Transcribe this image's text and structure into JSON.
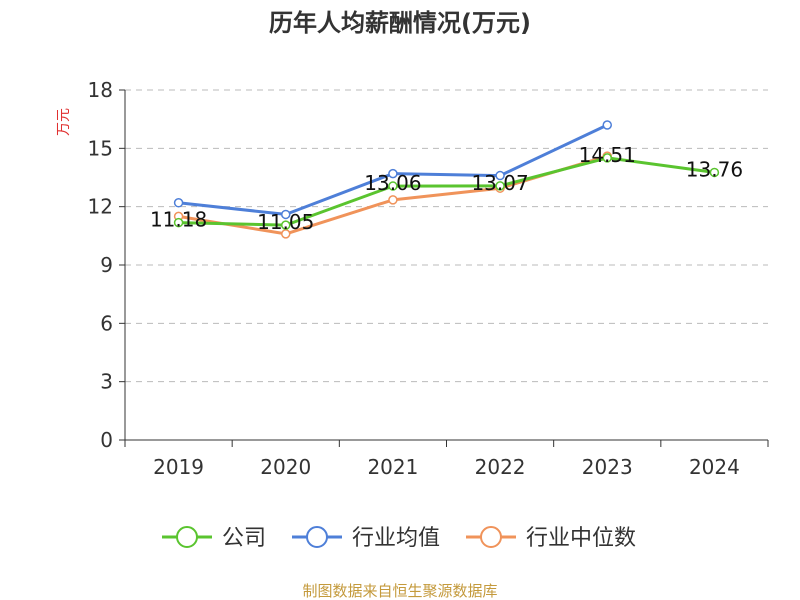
{
  "chart_data": {
    "type": "line",
    "title": "历年人均薪酬情况(万元)",
    "ylabel": "万元",
    "categories": [
      "2019",
      "2020",
      "2021",
      "2022",
      "2023",
      "2024"
    ],
    "ylim": [
      0,
      18
    ],
    "yticks": [
      "0",
      "3",
      "6",
      "9",
      "12",
      "15",
      "18"
    ],
    "grid": true,
    "legend_position": "bottom",
    "series": [
      {
        "name": "公司",
        "color": "#5ac42f",
        "values": [
          11.18,
          11.05,
          13.06,
          13.07,
          14.51,
          13.76
        ]
      },
      {
        "name": "行业均值",
        "color": "#4e7fd8",
        "values": [
          12.2,
          11.6,
          13.7,
          13.6,
          16.2,
          null
        ]
      },
      {
        "name": "行业中位数",
        "color": "#f0935a",
        "values": [
          11.5,
          10.6,
          12.35,
          12.95,
          14.6,
          null
        ]
      }
    ],
    "data_labels": [
      "11.18",
      "11.05",
      "13.06",
      "13.07",
      "14.51",
      "13.76"
    ]
  },
  "footer": {
    "source": "制图数据来自恒生聚源数据库"
  },
  "colors": {
    "ylabel": "#e03030",
    "source": "#c49a3c",
    "axis": "#333333",
    "grid": "#bbbbbb"
  }
}
